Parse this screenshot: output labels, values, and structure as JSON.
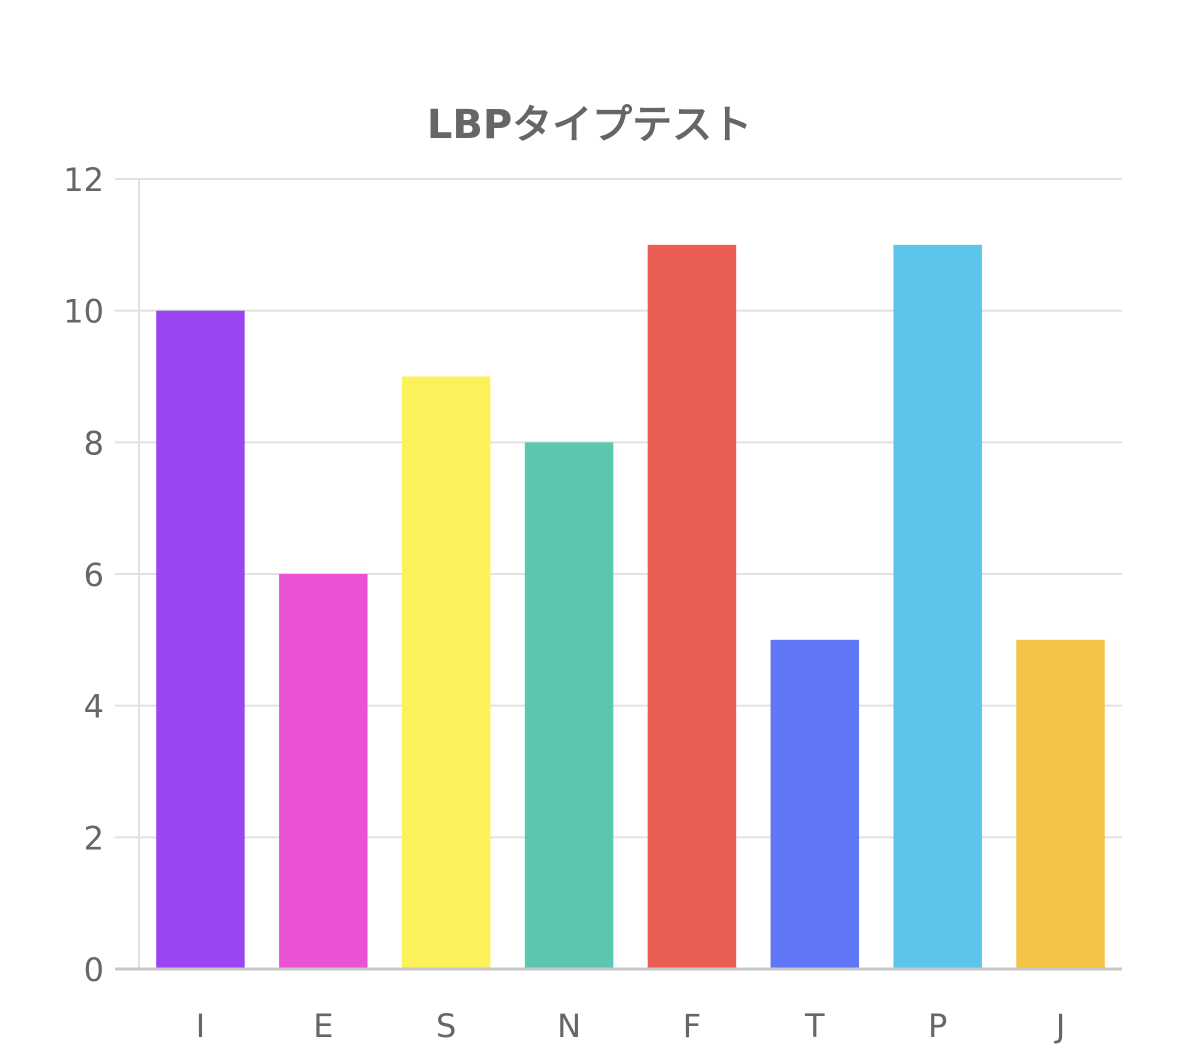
{
  "chart_data": {
    "type": "bar",
    "title": "LBPタイプテスト",
    "xlabel": "",
    "ylabel": "",
    "categories": [
      "I",
      "E",
      "S",
      "N",
      "F",
      "T",
      "P",
      "J"
    ],
    "values": [
      10,
      6,
      9,
      8,
      11,
      5,
      11,
      5
    ],
    "colors": [
      "#9945F2",
      "#EA52D6",
      "#FCF15A",
      "#5CC7B0",
      "#EA5D55",
      "#5F77F5",
      "#5CC5EB",
      "#F3C445"
    ],
    "ylim": [
      0,
      12
    ],
    "yticks": [
      "0",
      "2",
      "4",
      "6",
      "8",
      "10",
      "12"
    ],
    "grid": true,
    "legend": "none"
  }
}
